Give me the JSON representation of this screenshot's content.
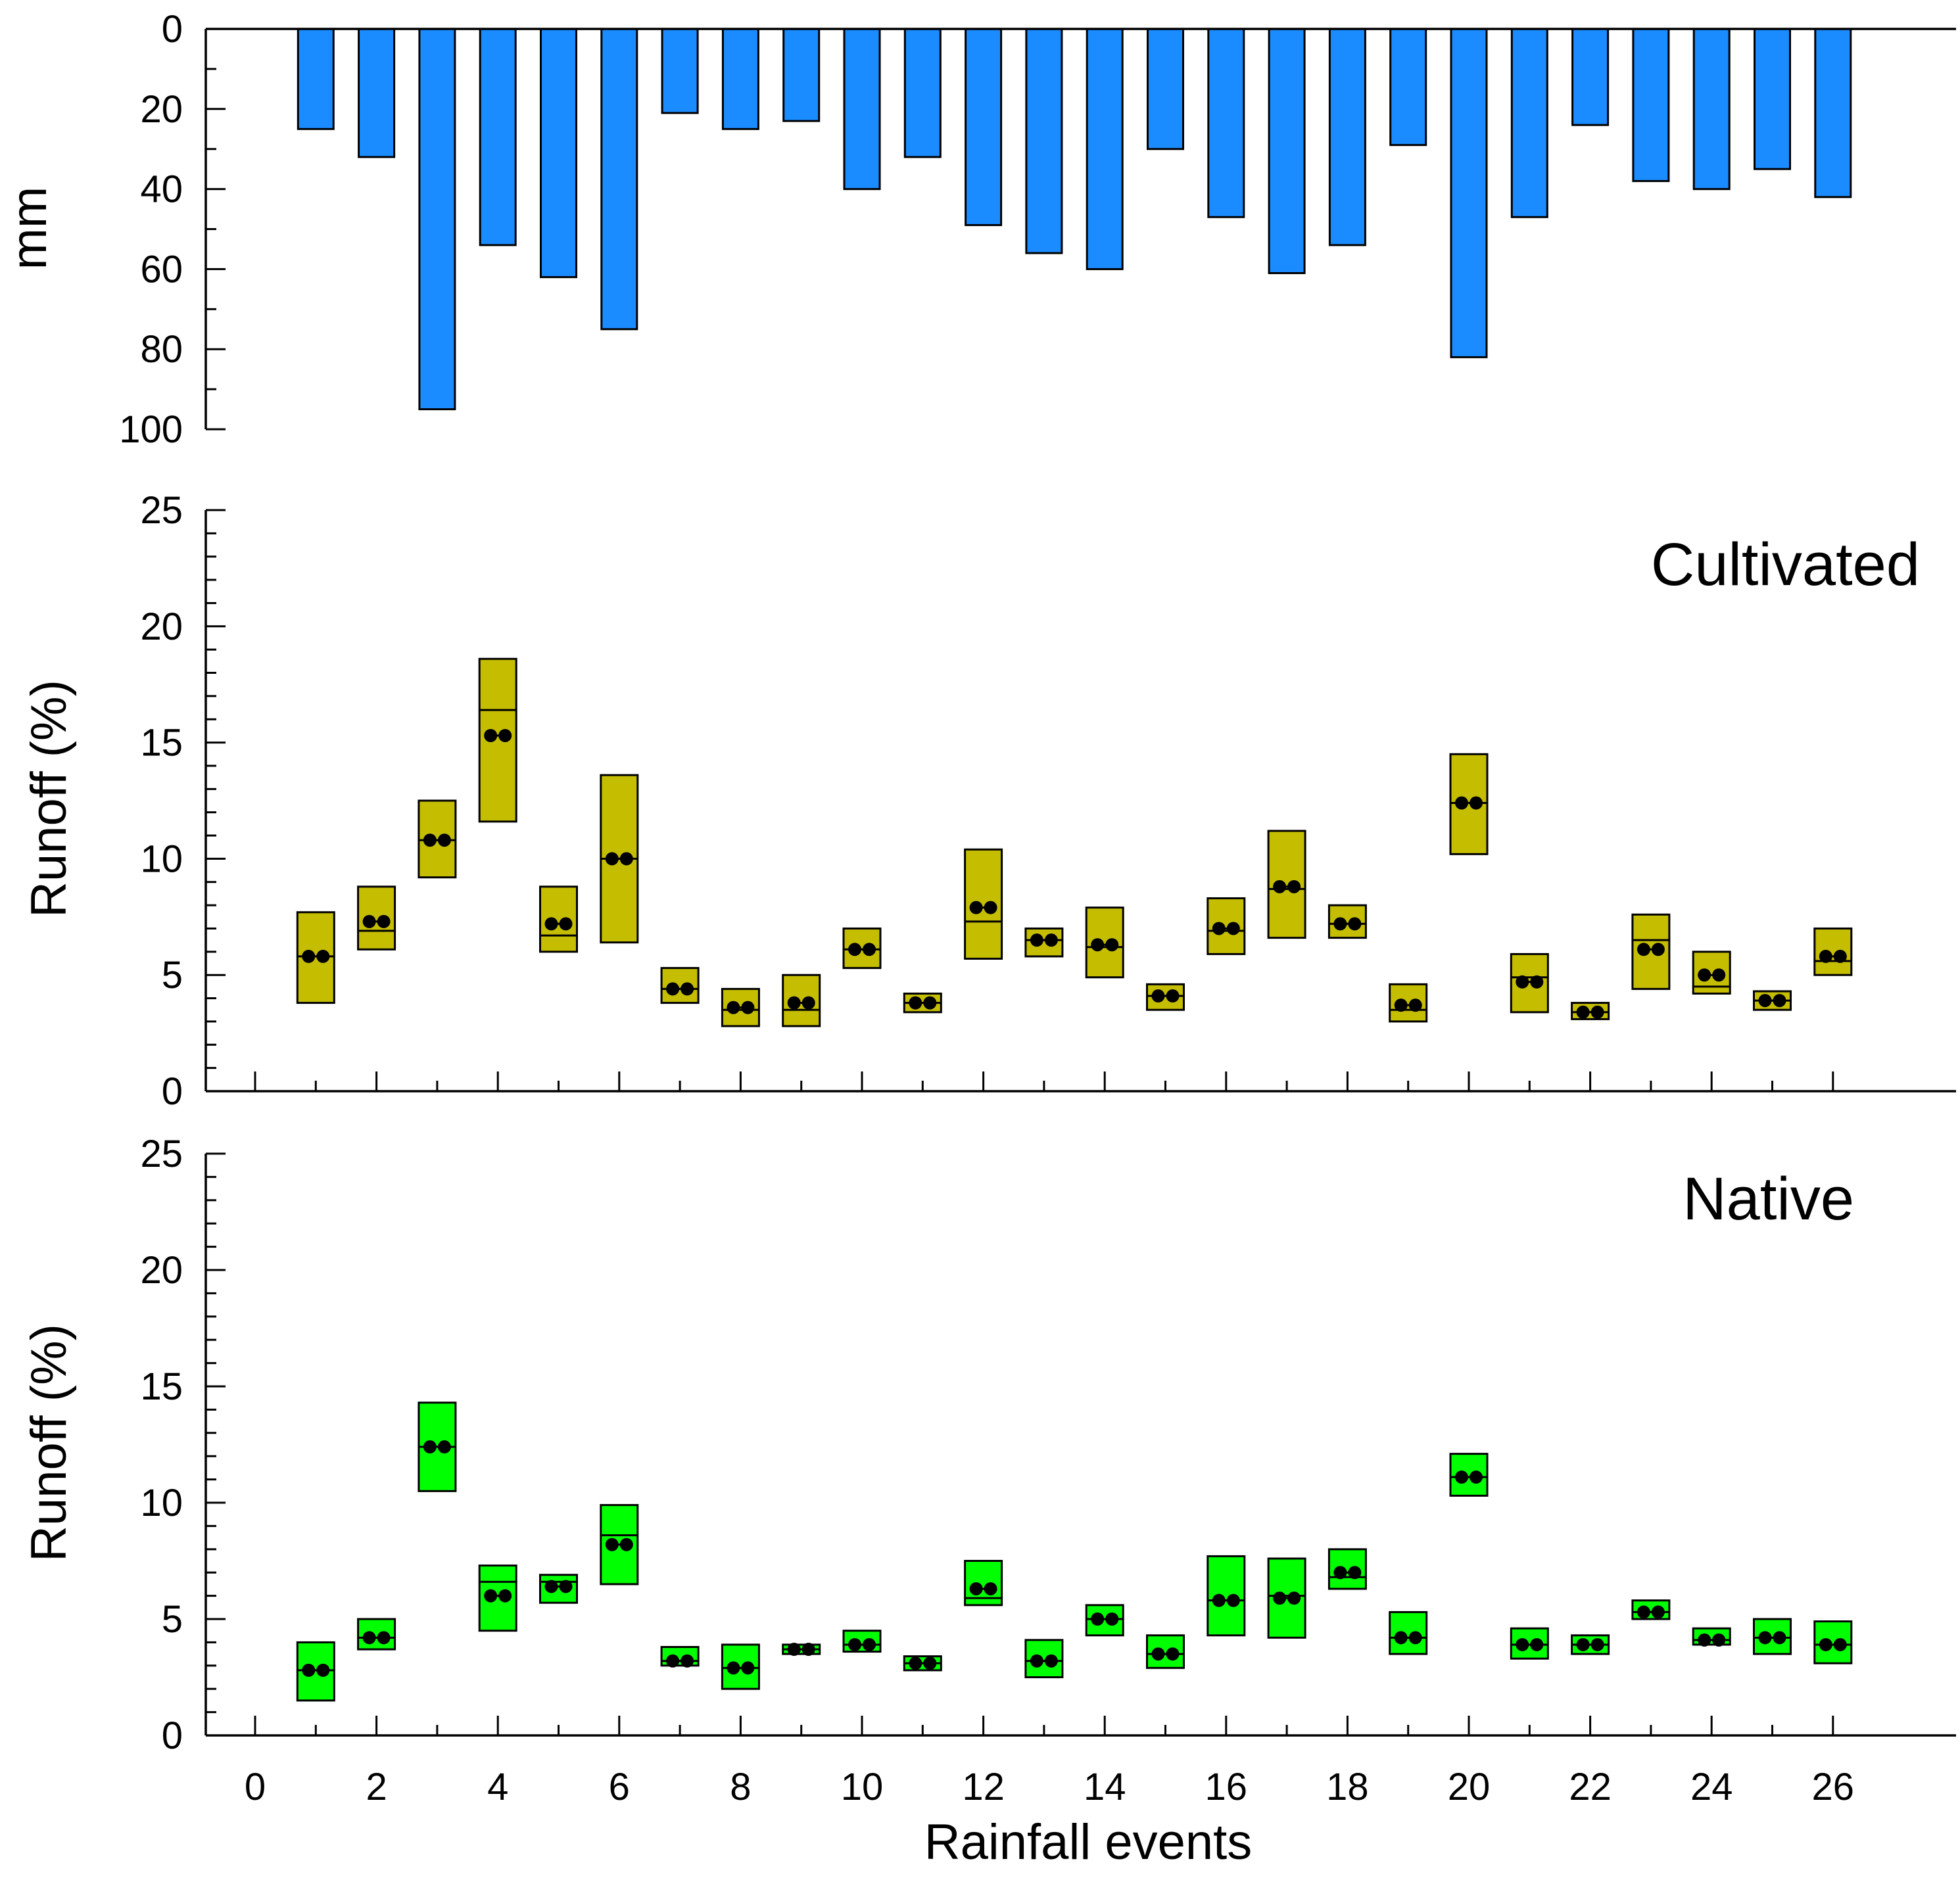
{
  "chart_data": [
    {
      "type": "bar",
      "panel": "rainfall",
      "title": "",
      "xlabel": "",
      "ylabel": "mm",
      "ylim": [
        0,
        100
      ],
      "y_inverted": true,
      "yticks": [
        0,
        20,
        40,
        60,
        80,
        100
      ],
      "bar_color": "#1b8cff",
      "x": [
        1,
        2,
        3,
        4,
        5,
        6,
        7,
        8,
        9,
        10,
        11,
        12,
        13,
        14,
        15,
        16,
        17,
        18,
        19,
        20,
        21,
        22,
        23,
        24,
        25,
        26
      ],
      "values": [
        25,
        32,
        95,
        54,
        62,
        75,
        21,
        25,
        23,
        40,
        32,
        49,
        56,
        60,
        30,
        47,
        61,
        54,
        29,
        82,
        47,
        24,
        38,
        40,
        35,
        42
      ]
    },
    {
      "type": "box",
      "panel": "cultivated",
      "title": "Cultivated",
      "xlabel": "",
      "ylabel": "Runoff (%)",
      "ylim": [
        0,
        25
      ],
      "yticks": [
        0,
        5,
        10,
        15,
        20,
        25
      ],
      "xlim": [
        -1.2,
        27
      ],
      "xticks": [
        0,
        2,
        4,
        6,
        8,
        10,
        12,
        14,
        16,
        18,
        20,
        22,
        24,
        26
      ],
      "box_color": "#c4bd00",
      "series": [
        {
          "event": 1,
          "low": 3.8,
          "high": 7.7,
          "median": 5.8,
          "mean": 5.8
        },
        {
          "event": 2,
          "low": 6.1,
          "high": 8.8,
          "median": 6.9,
          "mean": 7.3
        },
        {
          "event": 3,
          "low": 9.2,
          "high": 12.5,
          "median": 10.8,
          "mean": 10.8
        },
        {
          "event": 4,
          "low": 11.6,
          "high": 18.6,
          "median": 16.4,
          "mean": 15.3
        },
        {
          "event": 5,
          "low": 6.0,
          "high": 8.8,
          "median": 6.7,
          "mean": 7.2
        },
        {
          "event": 6,
          "low": 6.4,
          "high": 13.6,
          "median": 10.0,
          "mean": 10.0
        },
        {
          "event": 7,
          "low": 3.8,
          "high": 5.3,
          "median": 4.4,
          "mean": 4.4
        },
        {
          "event": 8,
          "low": 2.8,
          "high": 4.4,
          "median": 3.5,
          "mean": 3.6
        },
        {
          "event": 9,
          "low": 2.8,
          "high": 5.0,
          "median": 3.5,
          "mean": 3.8
        },
        {
          "event": 10,
          "low": 5.3,
          "high": 7.0,
          "median": 6.1,
          "mean": 6.1
        },
        {
          "event": 11,
          "low": 3.4,
          "high": 4.2,
          "median": 3.8,
          "mean": 3.8
        },
        {
          "event": 12,
          "low": 5.7,
          "high": 10.4,
          "median": 7.3,
          "mean": 7.9
        },
        {
          "event": 13,
          "low": 5.8,
          "high": 7.0,
          "median": 6.5,
          "mean": 6.5
        },
        {
          "event": 14,
          "low": 4.9,
          "high": 7.9,
          "median": 6.2,
          "mean": 6.3
        },
        {
          "event": 15,
          "low": 3.5,
          "high": 4.6,
          "median": 4.1,
          "mean": 4.1
        },
        {
          "event": 16,
          "low": 5.9,
          "high": 8.3,
          "median": 6.9,
          "mean": 7.0
        },
        {
          "event": 17,
          "low": 6.6,
          "high": 11.2,
          "median": 8.7,
          "mean": 8.8
        },
        {
          "event": 18,
          "low": 6.6,
          "high": 8.0,
          "median": 7.2,
          "mean": 7.2
        },
        {
          "event": 19,
          "low": 3.0,
          "high": 4.6,
          "median": 3.5,
          "mean": 3.7
        },
        {
          "event": 20,
          "low": 10.2,
          "high": 14.5,
          "median": 12.4,
          "mean": 12.4
        },
        {
          "event": 21,
          "low": 3.4,
          "high": 5.9,
          "median": 4.9,
          "mean": 4.7
        },
        {
          "event": 22,
          "low": 3.1,
          "high": 3.8,
          "median": 3.4,
          "mean": 3.4
        },
        {
          "event": 23,
          "low": 4.4,
          "high": 7.6,
          "median": 6.5,
          "mean": 6.1
        },
        {
          "event": 24,
          "low": 4.2,
          "high": 6.0,
          "median": 4.5,
          "mean": 5.0
        },
        {
          "event": 25,
          "low": 3.5,
          "high": 4.3,
          "median": 3.9,
          "mean": 3.9
        },
        {
          "event": 26,
          "low": 5.0,
          "high": 7.0,
          "median": 5.6,
          "mean": 5.8
        }
      ]
    },
    {
      "type": "box",
      "panel": "native",
      "title": "Native",
      "xlabel": "Rainfall events",
      "ylabel": "Runoff (%)",
      "ylim": [
        0,
        25
      ],
      "yticks": [
        0,
        5,
        10,
        15,
        20,
        25
      ],
      "xlim": [
        -1.2,
        27
      ],
      "xticks": [
        0,
        2,
        4,
        6,
        8,
        10,
        12,
        14,
        16,
        18,
        20,
        22,
        24,
        26
      ],
      "box_color": "#00ff00",
      "series": [
        {
          "event": 1,
          "low": 1.5,
          "high": 4.0,
          "median": 2.8,
          "mean": 2.8
        },
        {
          "event": 2,
          "low": 3.7,
          "high": 5.0,
          "median": 4.2,
          "mean": 4.2
        },
        {
          "event": 3,
          "low": 10.5,
          "high": 14.3,
          "median": 12.4,
          "mean": 12.4
        },
        {
          "event": 4,
          "low": 4.5,
          "high": 7.3,
          "median": 6.6,
          "mean": 6.0
        },
        {
          "event": 5,
          "low": 5.7,
          "high": 6.9,
          "median": 6.6,
          "mean": 6.4
        },
        {
          "event": 6,
          "low": 6.5,
          "high": 9.9,
          "median": 8.6,
          "mean": 8.2
        },
        {
          "event": 7,
          "low": 3.0,
          "high": 3.8,
          "median": 3.2,
          "mean": 3.2
        },
        {
          "event": 8,
          "low": 2.0,
          "high": 3.9,
          "median": 2.9,
          "mean": 2.9
        },
        {
          "event": 9,
          "low": 3.5,
          "high": 3.9,
          "median": 3.7,
          "mean": 3.7
        },
        {
          "event": 10,
          "low": 3.6,
          "high": 4.5,
          "median": 3.9,
          "mean": 3.9
        },
        {
          "event": 11,
          "low": 2.8,
          "high": 3.4,
          "median": 3.1,
          "mean": 3.1
        },
        {
          "event": 12,
          "low": 5.6,
          "high": 7.5,
          "median": 5.9,
          "mean": 6.3
        },
        {
          "event": 13,
          "low": 2.5,
          "high": 4.1,
          "median": 3.2,
          "mean": 3.2
        },
        {
          "event": 14,
          "low": 4.3,
          "high": 5.6,
          "median": 5.0,
          "mean": 5.0
        },
        {
          "event": 15,
          "low": 2.9,
          "high": 4.3,
          "median": 3.5,
          "mean": 3.5
        },
        {
          "event": 16,
          "low": 4.3,
          "high": 7.7,
          "median": 5.8,
          "mean": 5.8
        },
        {
          "event": 17,
          "low": 4.2,
          "high": 7.6,
          "median": 6.0,
          "mean": 5.9
        },
        {
          "event": 18,
          "low": 6.3,
          "high": 8.0,
          "median": 6.8,
          "mean": 7.0
        },
        {
          "event": 19,
          "low": 3.5,
          "high": 5.3,
          "median": 4.2,
          "mean": 4.2
        },
        {
          "event": 20,
          "low": 10.3,
          "high": 12.1,
          "median": 11.1,
          "mean": 11.1
        },
        {
          "event": 21,
          "low": 3.3,
          "high": 4.6,
          "median": 3.9,
          "mean": 3.9
        },
        {
          "event": 22,
          "low": 3.5,
          "high": 4.3,
          "median": 3.9,
          "mean": 3.9
        },
        {
          "event": 23,
          "low": 5.0,
          "high": 5.8,
          "median": 5.3,
          "mean": 5.3
        },
        {
          "event": 24,
          "low": 3.9,
          "high": 4.6,
          "median": 4.1,
          "mean": 4.1
        },
        {
          "event": 25,
          "low": 3.5,
          "high": 5.0,
          "median": 4.2,
          "mean": 4.2
        },
        {
          "event": 26,
          "low": 3.1,
          "high": 4.9,
          "median": 3.9,
          "mean": 3.9
        }
      ]
    }
  ]
}
